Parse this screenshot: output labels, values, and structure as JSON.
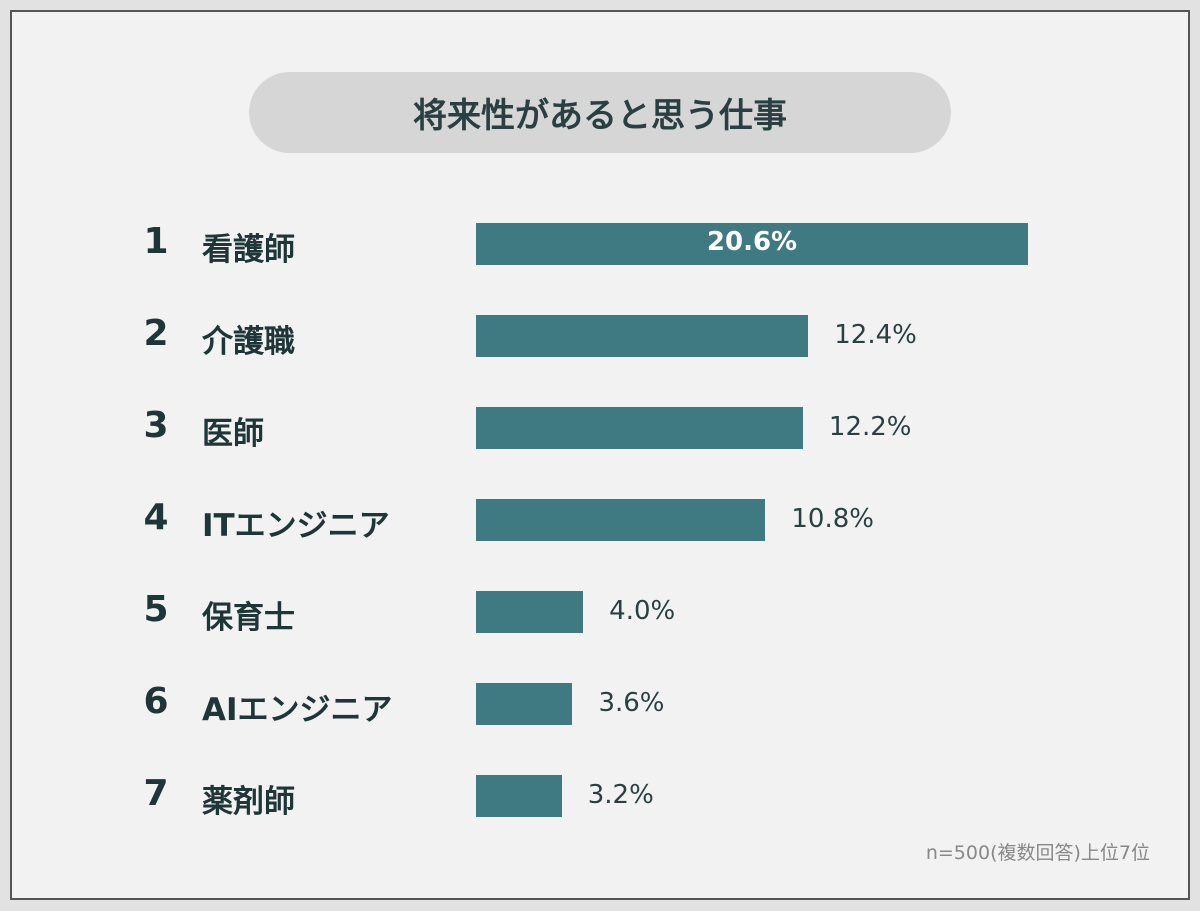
{
  "chart_data": {
    "type": "bar",
    "orientation": "horizontal",
    "title": "将来性があると思う仕事",
    "ranks": [
      "1",
      "2",
      "3",
      "4",
      "5",
      "6",
      "7"
    ],
    "categories": [
      "看護師",
      "介護職",
      "医師",
      "ITエンジニア",
      "保育士",
      "AIエンジニア",
      "薬剤師"
    ],
    "values": [
      20.6,
      12.4,
      12.2,
      10.8,
      4.0,
      3.6,
      3.2
    ],
    "value_labels": [
      "20.6%",
      "12.4%",
      "12.2%",
      "10.8%",
      "4.0%",
      "3.6%",
      "3.2%"
    ],
    "unit": "%",
    "grid": false,
    "bar_color": "#3f7a82",
    "note": "n=500(複数回答)上位7位"
  }
}
